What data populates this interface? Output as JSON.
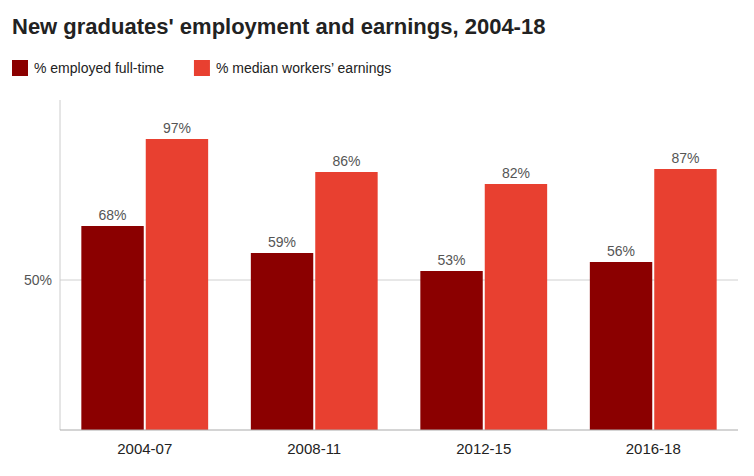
{
  "chart_data": {
    "type": "bar",
    "title": "New graduates' employment and earnings, 2004-18",
    "categories": [
      "2004-07",
      "2008-11",
      "2012-15",
      "2016-18"
    ],
    "series": [
      {
        "name": "% employed full-time",
        "color": "#8B0000",
        "values": [
          68,
          59,
          53,
          56
        ],
        "value_labels": [
          "68%",
          "59%",
          "53%",
          "56%"
        ]
      },
      {
        "name": "% median workers’ earnings",
        "color": "#E84030",
        "values": [
          97,
          86,
          82,
          87
        ],
        "value_labels": [
          "97%",
          "86%",
          "82%",
          "87%"
        ]
      }
    ],
    "ylim": [
      0,
      110
    ],
    "yticks": [
      {
        "value": 50,
        "label": "50%"
      }
    ],
    "grid": true,
    "legend": "top-left",
    "data_labels": true
  }
}
